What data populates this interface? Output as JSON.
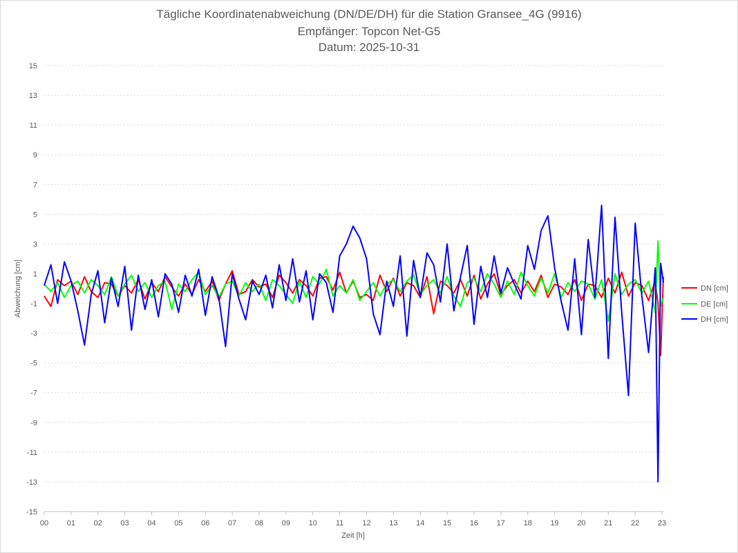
{
  "chart_data": {
    "type": "line",
    "title": "Tägliche Koordinatenabweichung (DN/DE/DH) für die Station Gransee_4G (9916)",
    "subtitle_receiver": "Empfänger: Topcon Net-G5",
    "subtitle_date": "Datum: 2025-10-31",
    "xlabel": "Zeit [h]",
    "ylabel": "Abweichung [cm]",
    "xlim": [
      0,
      23.05
    ],
    "ylim": [
      -15,
      15
    ],
    "x_ticks": [
      "00",
      "01",
      "02",
      "03",
      "04",
      "05",
      "06",
      "07",
      "08",
      "09",
      "10",
      "11",
      "12",
      "13",
      "14",
      "15",
      "16",
      "17",
      "18",
      "19",
      "20",
      "21",
      "22",
      "23"
    ],
    "y_ticks": [
      "15",
      "13",
      "11",
      "9",
      "7",
      "5",
      "3",
      "1",
      "-1",
      "-3",
      "-5",
      "-7",
      "-9",
      "-11",
      "-13",
      "-15"
    ],
    "y_tick_values": [
      15,
      13,
      11,
      9,
      7,
      5,
      3,
      1,
      -1,
      -3,
      -5,
      -7,
      -9,
      -11,
      -13,
      -15
    ],
    "grid": "horizontal dotted",
    "legend_position": "right",
    "x": [
      0.0,
      0.25,
      0.5,
      0.75,
      1.0,
      1.25,
      1.5,
      1.75,
      2.0,
      2.25,
      2.5,
      2.75,
      3.0,
      3.25,
      3.5,
      3.75,
      4.0,
      4.25,
      4.5,
      4.75,
      5.0,
      5.25,
      5.5,
      5.75,
      6.0,
      6.25,
      6.5,
      6.75,
      7.0,
      7.25,
      7.5,
      7.75,
      8.0,
      8.25,
      8.5,
      8.75,
      9.0,
      9.25,
      9.5,
      9.75,
      10.0,
      10.25,
      10.5,
      10.75,
      11.0,
      11.25,
      11.5,
      11.75,
      12.0,
      12.25,
      12.5,
      12.75,
      13.0,
      13.25,
      13.5,
      13.75,
      14.0,
      14.25,
      14.5,
      14.75,
      15.0,
      15.25,
      15.5,
      15.75,
      16.0,
      16.25,
      16.5,
      16.75,
      17.0,
      17.25,
      17.5,
      17.75,
      18.0,
      18.25,
      18.5,
      18.75,
      19.0,
      19.25,
      19.5,
      19.75,
      20.0,
      20.25,
      20.5,
      20.75,
      21.0,
      21.25,
      21.5,
      21.75,
      22.0,
      22.25,
      22.5,
      22.75,
      22.85,
      22.95,
      23.05
    ],
    "series": [
      {
        "name": "DN [cm]",
        "color": "#ff0000",
        "values": [
          -0.5,
          -1.2,
          0.6,
          0.2,
          0.5,
          -0.4,
          0.8,
          -0.2,
          -0.6,
          0.4,
          0.3,
          -0.5,
          0.2,
          -0.3,
          0.6,
          -0.7,
          0.4,
          -0.2,
          0.8,
          0.1,
          -0.5,
          0.3,
          -0.4,
          0.6,
          -0.2,
          0.5,
          -0.8,
          0.3,
          1.2,
          -0.4,
          -0.2,
          0.6,
          0.1,
          0.3,
          -0.6,
          0.9,
          0.4,
          -0.3,
          0.6,
          0.2,
          -0.5,
          0.7,
          0.8,
          -0.1,
          1.1,
          -0.3,
          0.5,
          -0.6,
          -0.4,
          -0.8,
          0.9,
          -0.2,
          0.7,
          -0.5,
          0.4,
          0.2,
          -0.6,
          0.8,
          -1.7,
          0.5,
          0.2,
          -0.3,
          0.6,
          -0.5,
          0.9,
          -0.7,
          0.3,
          1.0,
          -0.4,
          0.2,
          0.6,
          -0.3,
          0.5,
          -0.2,
          0.9,
          -0.6,
          0.3,
          0.1,
          -0.4,
          0.6,
          -0.8,
          0.3,
          0.2,
          -0.6,
          0.7,
          -0.3,
          1.1,
          -0.5,
          0.4,
          0.2,
          -0.8,
          0.5,
          -1.0,
          -4.5,
          0.8
        ]
      },
      {
        "name": "DE [cm]",
        "color": "#00ff00",
        "values": [
          0.3,
          -0.2,
          0.4,
          -0.6,
          0.2,
          0.5,
          -0.3,
          0.6,
          0.2,
          -0.4,
          0.8,
          -0.5,
          0.3,
          0.9,
          -0.2,
          0.4,
          -0.6,
          0.2,
          0.5,
          -1.4,
          0.3,
          -0.2,
          0.6,
          1.1,
          -0.4,
          0.2,
          -0.6,
          0.3,
          0.5,
          -0.5,
          0.4,
          -0.2,
          0.3,
          -0.8,
          0.6,
          0.2,
          -0.4,
          -1.0,
          0.5,
          -0.6,
          0.8,
          0.3,
          1.3,
          -0.5,
          0.2,
          -0.3,
          0.6,
          -0.8,
          -0.2,
          0.4,
          -0.5,
          0.3,
          0.6,
          -0.2,
          0.5,
          0.9,
          -0.4,
          0.2,
          0.6,
          -0.3,
          0.8,
          -0.5,
          -1.2,
          0.4,
          0.7,
          -0.2,
          1.0,
          0.3,
          -0.6,
          0.5,
          -0.4,
          1.1,
          0.2,
          -0.5,
          0.7,
          -0.3,
          1.0,
          -0.6,
          0.4,
          -0.2,
          0.5,
          0.3,
          -0.7,
          0.6,
          -2.2,
          1.0,
          -0.4,
          0.3,
          0.6,
          -0.3,
          0.5,
          -1.6,
          3.2,
          -1.2,
          -0.6
        ]
      },
      {
        "name": "DH [cm]",
        "color": "#0000ff",
        "values": [
          0.2,
          1.6,
          -1.0,
          1.8,
          0.5,
          -1.5,
          -3.8,
          -0.4,
          1.2,
          -2.3,
          0.7,
          -1.2,
          1.5,
          -2.8,
          0.9,
          -1.4,
          0.6,
          -1.9,
          1.0,
          0.3,
          -1.6,
          0.9,
          -0.5,
          1.3,
          -1.8,
          0.8,
          -0.6,
          -3.9,
          1.0,
          -0.7,
          -2.1,
          0.5,
          -0.4,
          0.9,
          -1.3,
          1.6,
          -0.8,
          2.0,
          -0.9,
          1.2,
          -2.1,
          1.0,
          0.4,
          -1.6,
          2.2,
          3.0,
          4.2,
          3.4,
          2.0,
          -1.7,
          -3.1,
          0.5,
          -1.2,
          2.2,
          -3.2,
          1.9,
          -0.6,
          2.4,
          1.6,
          -0.9,
          3.0,
          -1.5,
          0.8,
          2.9,
          -2.4,
          1.5,
          -0.6,
          2.2,
          -0.3,
          1.4,
          0.3,
          -0.7,
          2.9,
          1.3,
          3.9,
          4.9,
          1.4,
          -0.9,
          -2.8,
          2.0,
          -3.1,
          3.3,
          -0.6,
          5.6,
          -4.7,
          4.8,
          -1.6,
          -7.2,
          4.4,
          -0.5,
          -4.3,
          1.4,
          -13.0,
          1.7,
          0.4
        ]
      }
    ]
  }
}
